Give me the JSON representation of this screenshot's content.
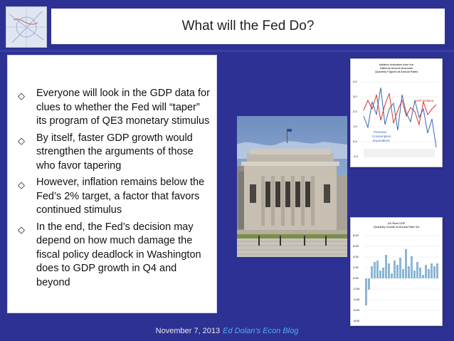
{
  "title": "What will the Fed Do?",
  "bullets": [
    "Everyone will look in the GDP data for clues to whether the Fed will “taper” its program of QE3 monetary stimulus",
    "By itself, faster GDP growth would strengthen the arguments of those who favor tapering",
    "However, inflation remains below the Fed’s 2% target, a factor that favors continued stimulus",
    "In the end, the Fed’s decision may depend on how much damage  the fiscal policy deadlock in Washington does to GDP growth in Q4 and beyond"
  ],
  "footer": {
    "date": "November 7, 2013",
    "blog": "Ed Dolan’s Econ Blog"
  },
  "inflation_chart": {
    "title_line1": "Inflation Indicators from the",
    "title_line2": "National Income Accounts",
    "title_line3": "Quarterly Figures at Annual Rates",
    "y_ticks": [
      "4.0",
      "3.0",
      "2.0",
      "1.0",
      "0.0",
      "-1.0"
    ],
    "label_gdp_deflator": "GDP Deflator",
    "label_pce_1": "Personal",
    "label_pce_2": "Consumption",
    "label_pce_3": "Expenditure",
    "colors": {
      "gdp_deflator": "#d9342b",
      "pce": "#3b66b0"
    }
  },
  "gdp_chart": {
    "title_line1": "US Real GDP",
    "title_line2": "Quarterly Growth at Annual Rate SA",
    "y_ticks": [
      "8.00",
      "6.00",
      "4.00",
      "2.00",
      "0.00",
      "-2.00",
      "-4.00",
      "-6.00",
      "-8.00"
    ],
    "colors": {
      "bars": "#8ab6d6"
    }
  }
}
